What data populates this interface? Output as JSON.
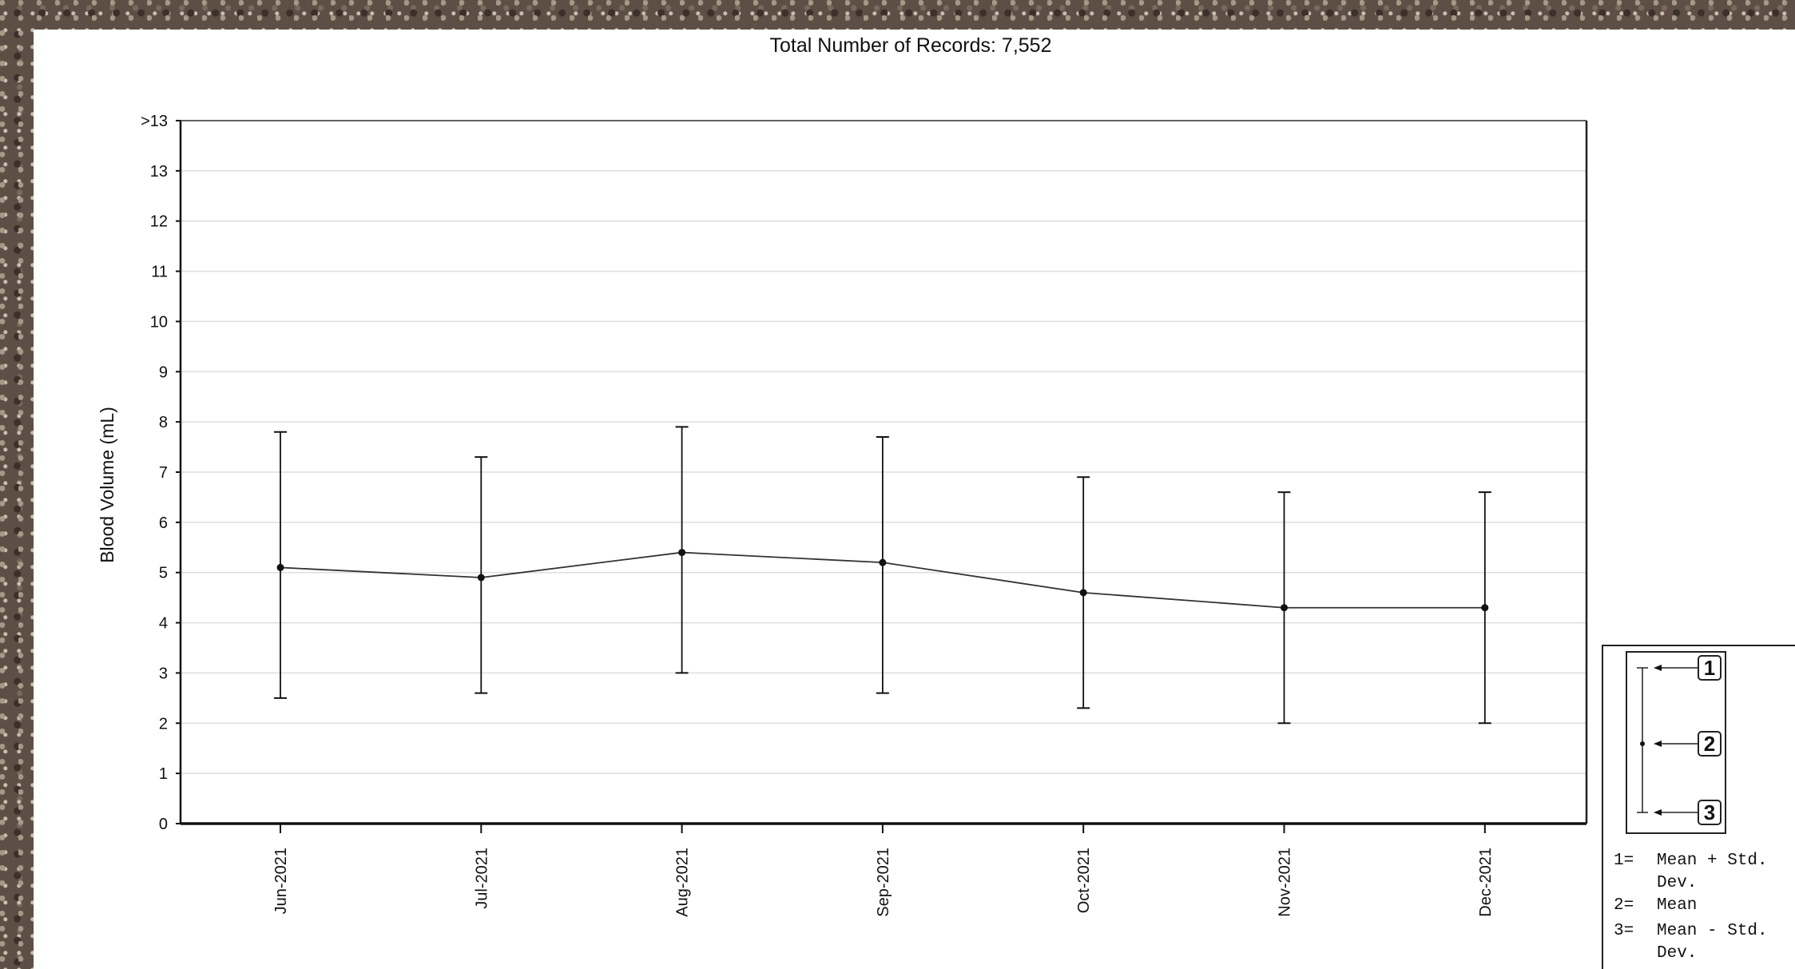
{
  "header": {
    "title": "Total Number of Records: 7,552"
  },
  "chart_data": {
    "type": "line",
    "title": "Total Number of Records: 7,552",
    "xlabel": "",
    "ylabel": "Blood Volume (mL)",
    "ylim": [
      0,
      14
    ],
    "yticks": [
      "0",
      "1",
      "2",
      "3",
      "4",
      "5",
      "6",
      "7",
      "8",
      "9",
      "10",
      "11",
      "12",
      "13",
      ">13"
    ],
    "categories": [
      "Jun-2021",
      "Jul-2021",
      "Aug-2021",
      "Sep-2021",
      "Oct-2021",
      "Nov-2021",
      "Dec-2021"
    ],
    "series": [
      {
        "mean": [
          5.1,
          4.9,
          5.4,
          5.2,
          4.6,
          4.3,
          4.3
        ],
        "upper": [
          7.8,
          7.3,
          7.9,
          7.7,
          6.9,
          6.6,
          6.6
        ],
        "lower": [
          2.5,
          2.6,
          3.0,
          2.6,
          2.3,
          2.0,
          2.0
        ]
      }
    ],
    "grid": true,
    "legend": {
      "position": "bottom-right",
      "markers": [
        "1",
        "2",
        "3"
      ],
      "entries": [
        "1= Mean + Std. Dev.",
        "2= Mean",
        "3= Mean - Std. Dev."
      ]
    }
  }
}
